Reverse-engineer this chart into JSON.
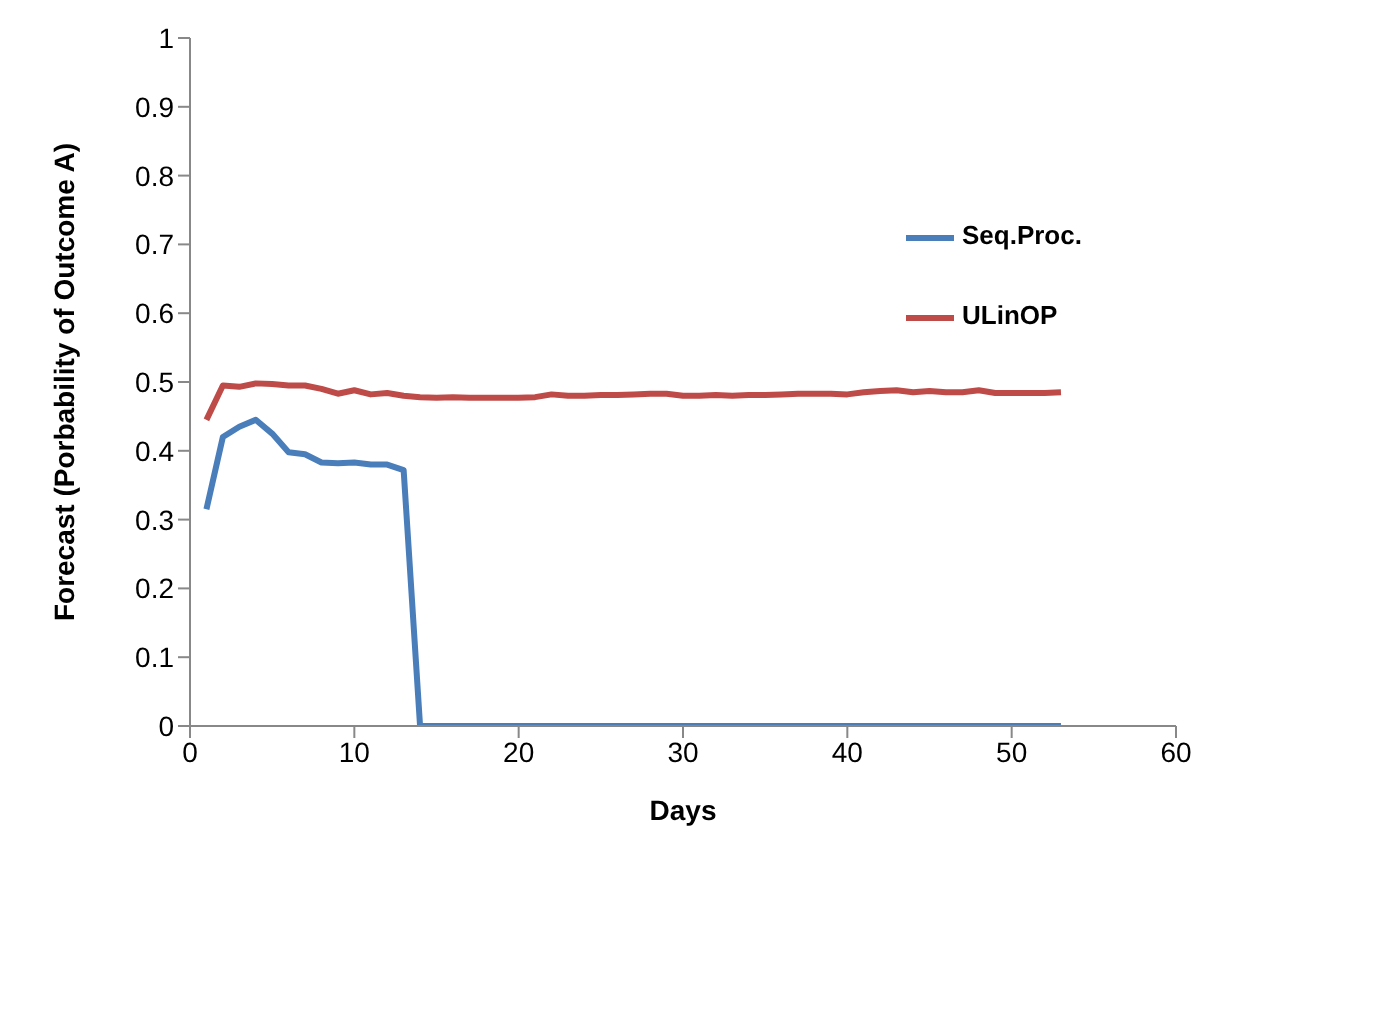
{
  "chart_data": {
    "type": "line",
    "xlabel": "Days",
    "ylabel": "Forecast (Porbability of Outcome A)",
    "x": [
      1,
      2,
      3,
      4,
      5,
      6,
      7,
      8,
      9,
      10,
      11,
      12,
      13,
      14,
      15,
      16,
      17,
      18,
      19,
      20,
      21,
      22,
      23,
      24,
      25,
      26,
      27,
      28,
      29,
      30,
      31,
      32,
      33,
      34,
      35,
      36,
      37,
      38,
      39,
      40,
      41,
      42,
      43,
      44,
      45,
      46,
      47,
      48,
      49,
      50,
      51,
      52,
      53
    ],
    "series": [
      {
        "name": "Seq.Proc.",
        "color": "#4a7ebb",
        "values": [
          0.315,
          0.42,
          0.435,
          0.445,
          0.425,
          0.398,
          0.395,
          0.383,
          0.382,
          0.383,
          0.38,
          0.38,
          0.372,
          0,
          0,
          0,
          0,
          0,
          0,
          0,
          0,
          0,
          0,
          0,
          0,
          0,
          0,
          0,
          0,
          0,
          0,
          0,
          0,
          0,
          0,
          0,
          0,
          0,
          0,
          0,
          0,
          0,
          0,
          0,
          0,
          0,
          0,
          0,
          0,
          0,
          0,
          0,
          0
        ]
      },
      {
        "name": "ULinOP",
        "color": "#be4b48",
        "values": [
          0.445,
          0.495,
          0.493,
          0.498,
          0.497,
          0.495,
          0.495,
          0.49,
          0.483,
          0.488,
          0.482,
          0.484,
          0.48,
          0.478,
          0.477,
          0.478,
          0.477,
          0.477,
          0.477,
          0.477,
          0.478,
          0.482,
          0.48,
          0.48,
          0.481,
          0.481,
          0.482,
          0.483,
          0.483,
          0.48,
          0.48,
          0.481,
          0.48,
          0.481,
          0.481,
          0.482,
          0.483,
          0.483,
          0.483,
          0.482,
          0.485,
          0.487,
          0.488,
          0.485,
          0.487,
          0.485,
          0.485,
          0.488,
          0.484,
          0.484,
          0.484,
          0.484,
          0.485
        ]
      }
    ],
    "xlim": [
      0,
      60
    ],
    "xticks": [
      0,
      10,
      20,
      30,
      40,
      50,
      60
    ],
    "ylim": [
      0,
      1
    ],
    "yticks": [
      0,
      0.1,
      0.2,
      0.3,
      0.4,
      0.5,
      0.6,
      0.7,
      0.8,
      0.9,
      1
    ],
    "grid": false,
    "legend": "top right",
    "marker": "none",
    "line_style": "solid"
  }
}
